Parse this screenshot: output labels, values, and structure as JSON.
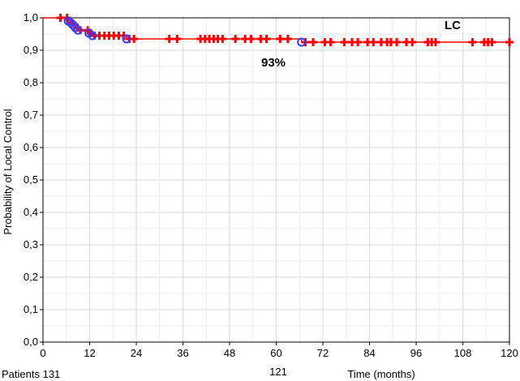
{
  "chart_data": {
    "type": "line",
    "title": "",
    "xlabel": "Time (months)",
    "ylabel": "Probability of Local Control",
    "xlim": [
      0,
      120
    ],
    "ylim": [
      0.0,
      1.0
    ],
    "x_ticks": [
      "0",
      "12",
      "24",
      "36",
      "48",
      "60",
      "72",
      "84",
      "96",
      "108",
      "120"
    ],
    "y_ticks": [
      "0,0",
      "0,1",
      "0,2",
      "0,3",
      "0,4",
      "0,5",
      "0,6",
      "0,7",
      "0,8",
      "0,9",
      "1,0"
    ],
    "grid": true,
    "series": [
      {
        "name": "LC",
        "color": "#ff0000",
        "step_x": [
          0,
          6.5,
          7.2,
          7.8,
          8.3,
          9.0,
          11.8,
          12.7,
          21.5,
          66.5,
          120
        ],
        "step_y": [
          1.0,
          0.99,
          0.984,
          0.977,
          0.97,
          0.962,
          0.953,
          0.945,
          0.935,
          0.925,
          0.925
        ],
        "events_x": [
          6.5,
          7.2,
          7.8,
          8.3,
          9.0,
          11.8,
          12.7,
          21.5,
          66.5
        ],
        "censored_x": [
          4.5,
          6.2,
          7.5,
          8.8,
          9.6,
          11.5,
          12.3,
          13.2,
          14.5,
          15.8,
          17.0,
          18.2,
          19.5,
          20.8,
          22.2,
          23.4,
          32.5,
          34.5,
          40.5,
          41.7,
          42.8,
          43.9,
          45.0,
          46.2,
          49.5,
          52.0,
          53.5,
          56.0,
          57.5,
          61.0,
          63.0,
          67.5,
          69.5,
          72.5,
          74.0,
          77.5,
          79.5,
          81.0,
          83.5,
          85.0,
          87.0,
          88.5,
          89.5,
          91.0,
          93.5,
          95.0,
          99.0,
          100.0,
          101.0,
          110.5,
          113.5,
          114.5,
          115.5,
          120.0
        ]
      }
    ],
    "annotations": {
      "series_label": "LC",
      "percent_label": "93%"
    },
    "at_risk": {
      "label": "Patients 131",
      "value_mid": "121"
    },
    "colors": {
      "line": "#ff0000",
      "event_marker": "#3b3bff",
      "grid": "#d8d8d8",
      "axis": "#000000"
    }
  }
}
